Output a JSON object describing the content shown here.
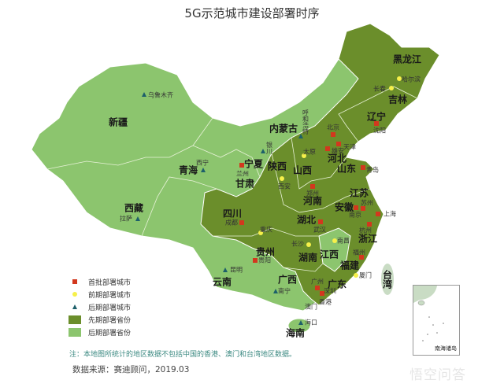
{
  "title": "5G示范城市建设部署时序",
  "colors": {
    "early_province": "#6b8e2b",
    "late_province": "#8cc56e",
    "first_batch": "#d2381e",
    "early_city": "#f6f04a",
    "late_city": "#1d5f6a",
    "taiwan": "#c9dcc4"
  },
  "legend": [
    {
      "label": "首批部署城市",
      "marker": "red-square"
    },
    {
      "label": "前期部署城市",
      "marker": "yellow-dot"
    },
    {
      "label": "后期部署城市",
      "marker": "teal-triangle"
    },
    {
      "label": "先期部署省份",
      "marker": "dark-green-box"
    },
    {
      "label": "后期部署省份",
      "marker": "light-green-box"
    }
  ],
  "provinces": [
    {
      "name": "黑龙江",
      "phase": "先期"
    },
    {
      "name": "吉林",
      "phase": "先期"
    },
    {
      "name": "辽宁",
      "phase": "先期"
    },
    {
      "name": "内蒙古",
      "phase": "后期"
    },
    {
      "name": "新疆",
      "phase": "后期"
    },
    {
      "name": "青海",
      "phase": "后期"
    },
    {
      "name": "西藏",
      "phase": "后期"
    },
    {
      "name": "甘肃",
      "phase": "后期"
    },
    {
      "name": "宁夏",
      "phase": "后期"
    },
    {
      "name": "陕西",
      "phase": "先期"
    },
    {
      "name": "山西",
      "phase": "先期"
    },
    {
      "name": "河北",
      "phase": "先期"
    },
    {
      "name": "山东",
      "phase": "先期"
    },
    {
      "name": "河南",
      "phase": "先期"
    },
    {
      "name": "江苏",
      "phase": "先期"
    },
    {
      "name": "安徽",
      "phase": "先期"
    },
    {
      "name": "四川",
      "phase": "先期"
    },
    {
      "name": "湖北",
      "phase": "先期"
    },
    {
      "name": "浙江",
      "phase": "先期"
    },
    {
      "name": "贵州",
      "phase": "后期"
    },
    {
      "name": "湖南",
      "phase": "先期"
    },
    {
      "name": "江西",
      "phase": "后期"
    },
    {
      "name": "福建",
      "phase": "先期"
    },
    {
      "name": "云南",
      "phase": "后期"
    },
    {
      "name": "广西",
      "phase": "后期"
    },
    {
      "name": "广东",
      "phase": "先期"
    },
    {
      "name": "海南",
      "phase": "后期"
    },
    {
      "name": "台湾",
      "phase": ""
    }
  ],
  "cities": [
    {
      "name": "哈尔滨",
      "tier": "前期"
    },
    {
      "name": "长春",
      "tier": "前期"
    },
    {
      "name": "沈阳",
      "tier": "首批"
    },
    {
      "name": "北京",
      "tier": "首批"
    },
    {
      "name": "天津",
      "tier": "首批"
    },
    {
      "name": "雄安",
      "tier": "首批"
    },
    {
      "name": "太原",
      "tier": "前期"
    },
    {
      "name": "呼和浩特",
      "tier": "后期"
    },
    {
      "name": "银川",
      "tier": "后期"
    },
    {
      "name": "兰州",
      "tier": "首批"
    },
    {
      "name": "西安",
      "tier": "前期"
    },
    {
      "name": "青岛",
      "tier": "首批"
    },
    {
      "name": "郑州",
      "tier": "首批"
    },
    {
      "name": "南京",
      "tier": "首批"
    },
    {
      "name": "苏州",
      "tier": "首批"
    },
    {
      "name": "上海",
      "tier": "首批"
    },
    {
      "name": "成都",
      "tier": "首批"
    },
    {
      "name": "武汉",
      "tier": "首批"
    },
    {
      "name": "重庆",
      "tier": "前期"
    },
    {
      "name": "杭州",
      "tier": "首批"
    },
    {
      "name": "南昌",
      "tier": "前期"
    },
    {
      "name": "长沙",
      "tier": "前期"
    },
    {
      "name": "贵阳",
      "tier": "首批"
    },
    {
      "name": "福州",
      "tier": "首批"
    },
    {
      "name": "厦门",
      "tier": "前期"
    },
    {
      "name": "昆明",
      "tier": "后期"
    },
    {
      "name": "南宁",
      "tier": "后期"
    },
    {
      "name": "广州",
      "tier": "首批"
    },
    {
      "name": "深圳",
      "tier": "首批"
    },
    {
      "name": "香港",
      "tier": ""
    },
    {
      "name": "澳门",
      "tier": ""
    },
    {
      "name": "海口",
      "tier": "后期"
    },
    {
      "name": "乌鲁木齐",
      "tier": "后期"
    },
    {
      "name": "西宁",
      "tier": "后期"
    },
    {
      "name": "拉萨",
      "tier": "后期"
    }
  ],
  "inset_label": "南海诸岛",
  "note": "注：本地图所统计的地区数据不包括中国的香港、澳门和台湾地区数据。",
  "source": "数据来源：赛迪顾问，2019.03",
  "watermark": "悟空问答"
}
